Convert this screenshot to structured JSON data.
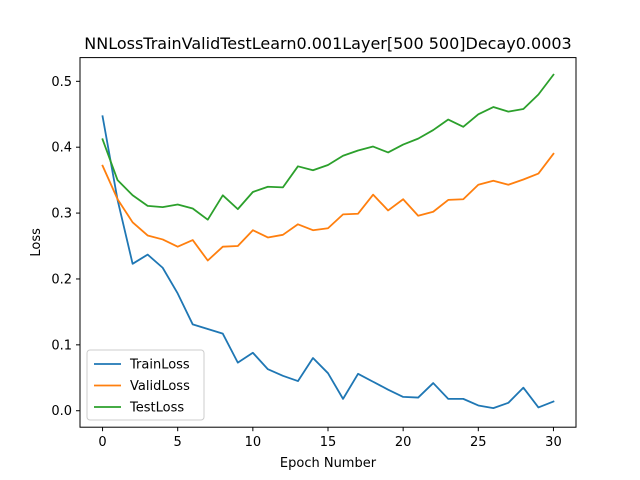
{
  "chart_data": {
    "type": "line",
    "title": "NNLossTrainValidTestLearn0.001Layer[500 500]Decay0.0003",
    "xlabel": "Epoch Number",
    "ylabel": "Loss",
    "xlim": [
      -1.5,
      31.5
    ],
    "ylim": [
      -0.025,
      0.536
    ],
    "xticks": [
      0,
      5,
      10,
      15,
      20,
      25,
      30
    ],
    "xtick_labels": [
      "0",
      "5",
      "10",
      "15",
      "20",
      "25",
      "30"
    ],
    "yticks": [
      0.0,
      0.1,
      0.2,
      0.3,
      0.4,
      0.5
    ],
    "ytick_labels": [
      "0.0",
      "0.1",
      "0.2",
      "0.3",
      "0.4",
      "0.5"
    ],
    "grid": false,
    "legend_position": "lower-left",
    "x": [
      0,
      1,
      2,
      3,
      4,
      5,
      6,
      7,
      8,
      9,
      10,
      11,
      12,
      13,
      14,
      15,
      16,
      17,
      18,
      19,
      20,
      21,
      22,
      23,
      24,
      25,
      26,
      27,
      28,
      29,
      30
    ],
    "series": [
      {
        "name": "TrainLoss",
        "color": "#1f77b4",
        "values": [
          0.447,
          0.32,
          0.223,
          0.237,
          0.217,
          0.178,
          0.131,
          0.124,
          0.117,
          0.073,
          0.088,
          0.063,
          0.053,
          0.045,
          0.08,
          0.057,
          0.018,
          0.056,
          0.044,
          0.032,
          0.021,
          0.02,
          0.042,
          0.018,
          0.018,
          0.008,
          0.004,
          0.012,
          0.035,
          0.005,
          0.014
        ]
      },
      {
        "name": "ValidLoss",
        "color": "#ff7f0e",
        "values": [
          0.372,
          0.321,
          0.286,
          0.266,
          0.26,
          0.249,
          0.259,
          0.228,
          0.249,
          0.25,
          0.274,
          0.263,
          0.267,
          0.283,
          0.274,
          0.277,
          0.298,
          0.299,
          0.328,
          0.304,
          0.321,
          0.296,
          0.302,
          0.32,
          0.321,
          0.343,
          0.349,
          0.343,
          0.351,
          0.36,
          0.39
        ]
      },
      {
        "name": "TestLoss",
        "color": "#2ca02c",
        "values": [
          0.412,
          0.35,
          0.327,
          0.311,
          0.309,
          0.313,
          0.307,
          0.29,
          0.327,
          0.306,
          0.332,
          0.34,
          0.339,
          0.371,
          0.365,
          0.373,
          0.387,
          0.395,
          0.401,
          0.392,
          0.404,
          0.413,
          0.426,
          0.442,
          0.431,
          0.45,
          0.461,
          0.454,
          0.458,
          0.48,
          0.51
        ]
      }
    ]
  }
}
